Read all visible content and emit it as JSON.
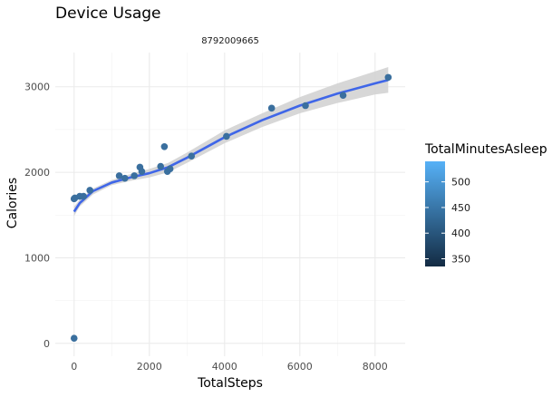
{
  "chart_data": {
    "type": "scatter",
    "title": "Device Usage",
    "facet_label": "8792009665",
    "xlabel": "TotalSteps",
    "ylabel": "Calories",
    "xlim": [
      -500,
      8800
    ],
    "ylim": [
      -150,
      3400
    ],
    "x_ticks": [
      0,
      2000,
      4000,
      6000,
      8000
    ],
    "y_ticks": [
      0,
      1000,
      2000,
      3000
    ],
    "grid": true,
    "legend": {
      "title": "TotalMinutesAsleep",
      "placement": "right",
      "range": [
        335,
        540
      ],
      "ticks": [
        350,
        400,
        450,
        500
      ],
      "color_low": "#132b43",
      "color_high": "#56b1f7"
    },
    "point_color": "#3a6f9e",
    "trend_color": "#3f66e8",
    "band_color": "#d3d3d3",
    "points": [
      {
        "x": 0,
        "y": 60
      },
      {
        "x": 0,
        "y": 1690
      },
      {
        "x": 20,
        "y": 1700
      },
      {
        "x": 150,
        "y": 1720
      },
      {
        "x": 250,
        "y": 1720
      },
      {
        "x": 420,
        "y": 1790
      },
      {
        "x": 1200,
        "y": 1960
      },
      {
        "x": 1350,
        "y": 1930
      },
      {
        "x": 1600,
        "y": 1960
      },
      {
        "x": 1750,
        "y": 2060
      },
      {
        "x": 1800,
        "y": 2010
      },
      {
        "x": 2300,
        "y": 2070
      },
      {
        "x": 2400,
        "y": 2300
      },
      {
        "x": 2480,
        "y": 2010
      },
      {
        "x": 2550,
        "y": 2040
      },
      {
        "x": 3120,
        "y": 2190
      },
      {
        "x": 4050,
        "y": 2420
      },
      {
        "x": 5250,
        "y": 2750
      },
      {
        "x": 6150,
        "y": 2780
      },
      {
        "x": 7150,
        "y": 2900
      },
      {
        "x": 8350,
        "y": 3110
      }
    ],
    "trend": [
      {
        "x": 0,
        "y": 1540,
        "lo": 1490,
        "hi": 1600
      },
      {
        "x": 150,
        "y": 1640,
        "lo": 1600,
        "hi": 1680
      },
      {
        "x": 500,
        "y": 1780,
        "lo": 1740,
        "hi": 1810
      },
      {
        "x": 1000,
        "y": 1880,
        "lo": 1850,
        "hi": 1910
      },
      {
        "x": 1500,
        "y": 1940,
        "lo": 1900,
        "hi": 1980
      },
      {
        "x": 2000,
        "y": 1990,
        "lo": 1940,
        "hi": 2040
      },
      {
        "x": 2500,
        "y": 2060,
        "lo": 2000,
        "hi": 2110
      },
      {
        "x": 3000,
        "y": 2170,
        "lo": 2110,
        "hi": 2230
      },
      {
        "x": 4000,
        "y": 2410,
        "lo": 2340,
        "hi": 2490
      },
      {
        "x": 5000,
        "y": 2610,
        "lo": 2530,
        "hi": 2690
      },
      {
        "x": 6000,
        "y": 2780,
        "lo": 2690,
        "hi": 2880
      },
      {
        "x": 7000,
        "y": 2920,
        "lo": 2810,
        "hi": 3040
      },
      {
        "x": 8000,
        "y": 3040,
        "lo": 2910,
        "hi": 3180
      },
      {
        "x": 8350,
        "y": 3080,
        "lo": 2930,
        "hi": 3230
      }
    ]
  }
}
